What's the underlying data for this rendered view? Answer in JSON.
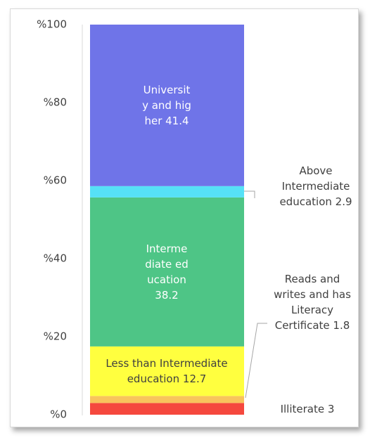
{
  "chart_data": {
    "type": "bar",
    "stacked": true,
    "ylim": [
      0,
      100
    ],
    "yticks": [
      {
        "value": 0,
        "label": "%0"
      },
      {
        "value": 20,
        "label": "%20"
      },
      {
        "value": 40,
        "label": "%40"
      },
      {
        "value": 60,
        "label": "%60"
      },
      {
        "value": 80,
        "label": "%80"
      },
      {
        "value": 100,
        "label": "%100"
      }
    ],
    "series": [
      {
        "name": "Illiterate",
        "color": "#f5483e",
        "values": [
          3
        ]
      },
      {
        "name": "Reads and writes and has Literacy Certificate",
        "color": "#f8c45c",
        "values": [
          1.8
        ]
      },
      {
        "name": "Less than Intermediate education",
        "color": "#ffff3f",
        "values": [
          12.7
        ]
      },
      {
        "name": "Intermediate education",
        "color": "#4ec586",
        "values": [
          38.2
        ]
      },
      {
        "name": "Above Intermediate education",
        "color": "#56e1f7",
        "values": [
          2.9
        ]
      },
      {
        "name": "University and higher",
        "color": "#6f74e8",
        "values": [
          41.4
        ]
      }
    ]
  }
}
